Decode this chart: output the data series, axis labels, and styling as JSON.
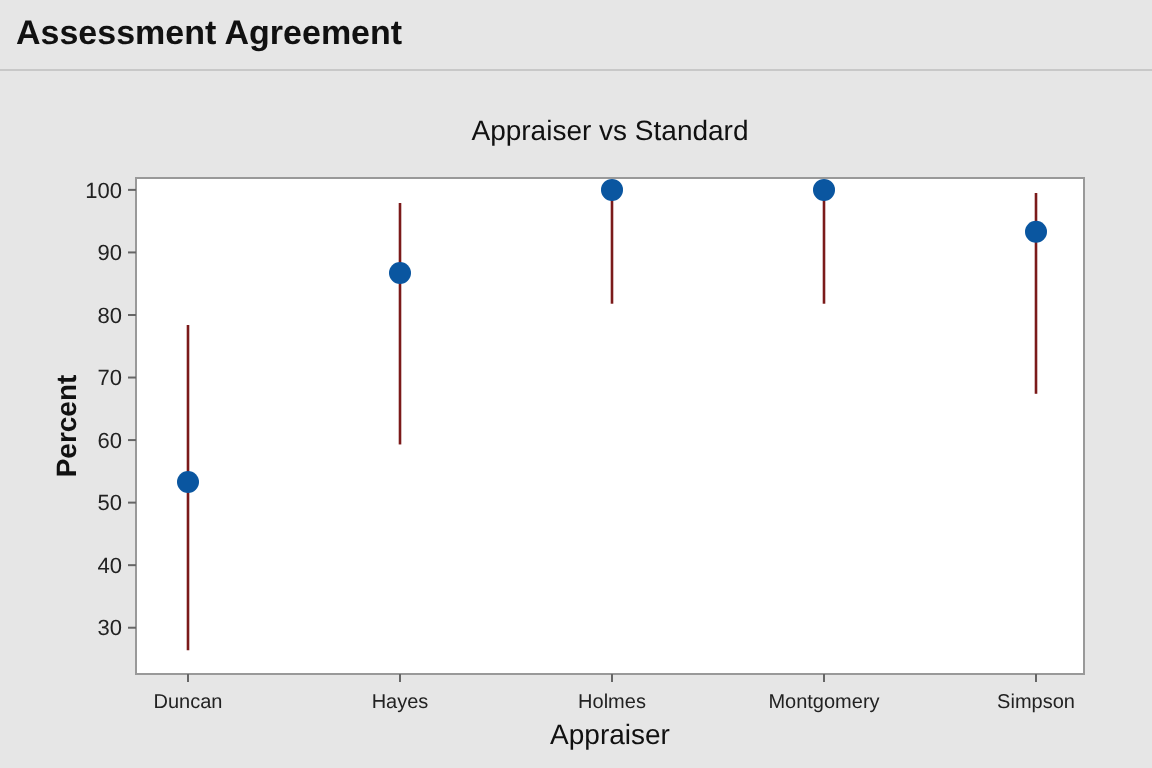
{
  "chart_data": {
    "type": "scatter",
    "title": "Assessment Agreement",
    "subtitle": "Appraiser vs Standard",
    "xlabel": "Appraiser",
    "ylabel": "Percent",
    "categories": [
      "Duncan",
      "Hayes",
      "Holmes",
      "Montgomery",
      "Simpson"
    ],
    "series": [
      {
        "color": "#0a56a0",
        "values": [
          53.3,
          86.7,
          100,
          100,
          93.3
        ],
        "errors": [
          [
            26.4,
            78.4
          ],
          [
            59.3,
            97.9
          ],
          [
            81.8,
            100
          ],
          [
            81.8,
            100
          ],
          [
            67.4,
            99.5
          ]
        ]
      }
    ],
    "ylim": [
      22.6,
      101.9
    ],
    "yticks": [
      30,
      40,
      50,
      60,
      70,
      80,
      90,
      100
    ],
    "grid": false,
    "marker": "circle"
  }
}
